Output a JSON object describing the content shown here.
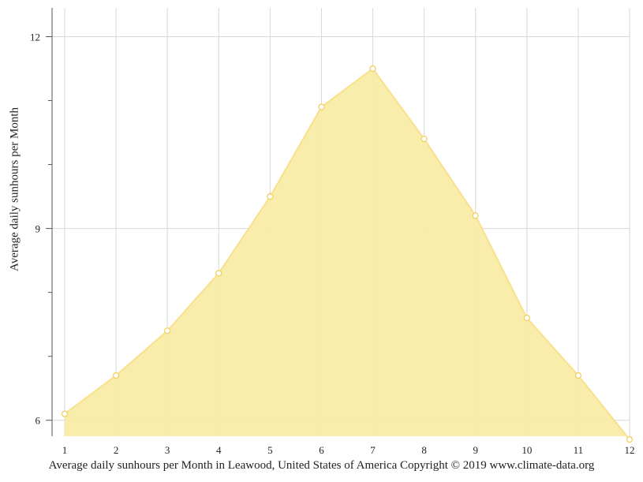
{
  "chart_data": {
    "type": "area",
    "title": "",
    "xlabel": "Average daily sunhours per Month in Leawood, United States of America Copyright © 2019 www.climate-data.org",
    "ylabel": "Average daily sunhours per Month",
    "x": [
      1,
      2,
      3,
      4,
      5,
      6,
      7,
      8,
      9,
      10,
      11,
      12
    ],
    "x_tick_labels": [
      "1",
      "2",
      "3",
      "4",
      "5",
      "6",
      "7",
      "8",
      "9",
      "10",
      "11",
      "12"
    ],
    "series": [
      {
        "values": [
          6.1,
          6.7,
          7.4,
          8.3,
          9.5,
          10.9,
          11.5,
          10.4,
          9.2,
          7.6,
          6.7,
          5.7
        ]
      }
    ],
    "ylim": [
      5.75,
      12.45
    ],
    "y_major_ticks": [
      6,
      9,
      12
    ],
    "y_minor_ticks": [
      7,
      8,
      10,
      11
    ],
    "grid": true,
    "legend": "none",
    "colors": {
      "fill": "#f9eca8",
      "line": "#f8e18a",
      "marker_fill": "#ffffff",
      "marker_stroke": "#f2d060",
      "grid": "#d8d8d8",
      "axis": "#555555"
    }
  }
}
